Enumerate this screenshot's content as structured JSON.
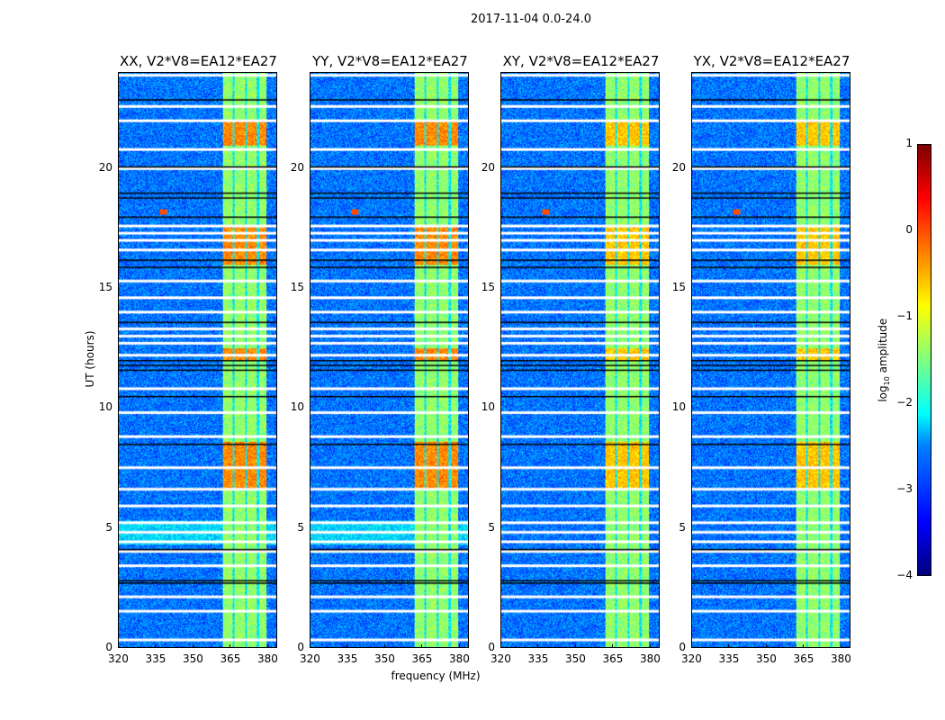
{
  "suptitle": "2017-11-04 0.0-24.0",
  "chart_data": {
    "type": "heatmap",
    "xlabel": "frequency (MHz)",
    "ylabel": "UT (hours)",
    "xlim": [
      320,
      384
    ],
    "ylim": [
      0,
      24
    ],
    "xticks": [
      320,
      335,
      350,
      365,
      380
    ],
    "yticks": [
      0,
      5,
      10,
      15,
      20
    ],
    "panels": [
      {
        "title": "XX, V2*V8=EA12*EA27"
      },
      {
        "title": "YY, V2*V8=EA12*EA27"
      },
      {
        "title": "XY, V2*V8=EA12*EA27"
      },
      {
        "title": "YX, V2*V8=EA12*EA27"
      }
    ],
    "colorbar": {
      "label_main": "log",
      "label_sub": "10",
      "label_rest": " amplitude",
      "colormap": "jet",
      "range": [
        -4,
        1
      ],
      "ticks": [
        "1",
        "0",
        "−1",
        "−2",
        "−3",
        "−4"
      ]
    },
    "background_log_amplitude": -2.8,
    "rfi_bands_mhz": [
      [
        362,
        366
      ],
      [
        367,
        371
      ],
      [
        372,
        376
      ],
      [
        377,
        380
      ]
    ],
    "rfi_base_log_amplitude": -1.4,
    "strong_rfi_hours": [
      [
        6.6,
        8.6
      ],
      [
        16.0,
        17.6
      ],
      [
        21.0,
        22.0
      ],
      [
        12.0,
        12.5
      ]
    ],
    "flagged_hours": [
      0.3,
      1.5,
      2.1,
      3.4,
      4.0,
      4.4,
      4.8,
      5.2,
      5.9,
      6.6,
      7.5,
      8.8,
      9.8,
      10.8,
      12.2,
      12.7,
      13.0,
      13.3,
      14.0,
      14.6,
      15.3,
      16.6,
      17.0,
      17.3,
      17.6,
      20.0,
      20.8,
      22.0,
      22.6,
      23.9
    ],
    "dark_hours": [
      2.7,
      2.8,
      4.1,
      8.5,
      10.5,
      11.6,
      11.8,
      12.0,
      13.6,
      15.9,
      16.2,
      18.0,
      18.8,
      19.0,
      20.1,
      22.9
    ]
  }
}
